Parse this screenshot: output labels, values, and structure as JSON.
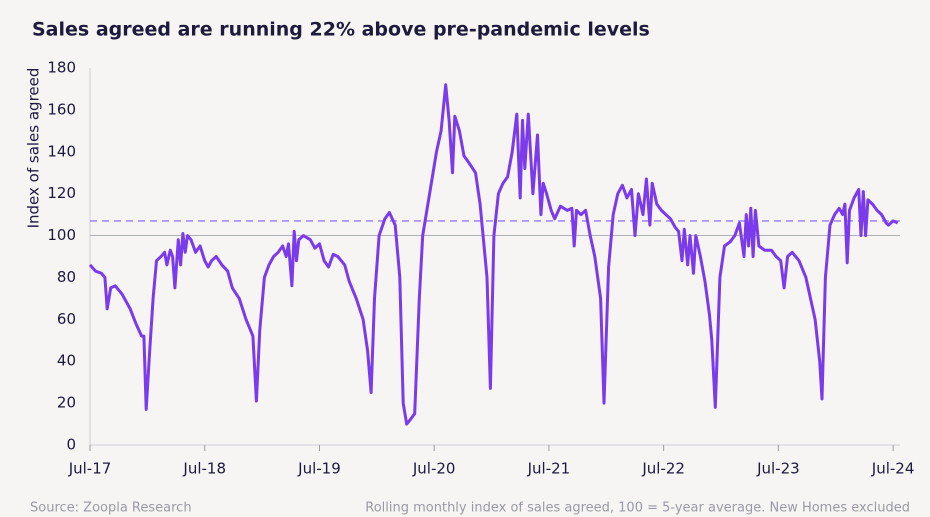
{
  "chart_data": {
    "type": "line",
    "title": "Sales agreed are running 22% above pre-pandemic levels",
    "y_label": "Index of sales agreed",
    "source": "Source: Zoopla Research",
    "note": "Rolling monthly index of sales agreed, 100 = 5-year average. New Homes excluded",
    "xlim": [
      2017.5,
      2024.56
    ],
    "xticks": [
      {
        "value": 2017.5,
        "label": "Jul-17"
      },
      {
        "value": 2018.5,
        "label": "Jul-18"
      },
      {
        "value": 2019.5,
        "label": "Jul-19"
      },
      {
        "value": 2020.5,
        "label": "Jul-20"
      },
      {
        "value": 2021.5,
        "label": "Jul-21"
      },
      {
        "value": 2022.5,
        "label": "Jul-22"
      },
      {
        "value": 2023.5,
        "label": "Jul-23"
      },
      {
        "value": 2024.5,
        "label": "Jul-24"
      }
    ],
    "ylim": [
      0,
      180
    ],
    "yticks": [
      0,
      20,
      40,
      60,
      80,
      100,
      120,
      140,
      160,
      180
    ],
    "hlines": [
      {
        "value": 100,
        "color": "#b0b0b8",
        "style": "solid"
      },
      {
        "value": 107,
        "color": "#a58cf5",
        "style": "dashed"
      }
    ],
    "x": [
      2017.5,
      2017.55,
      2017.6,
      2017.63,
      2017.65,
      2017.68,
      2017.72,
      2017.78,
      2017.85,
      2017.9,
      2017.95,
      2017.97,
      2017.99,
      2018.02,
      2018.05,
      2018.08,
      2018.12,
      2018.15,
      2018.17,
      2018.2,
      2018.22,
      2018.24,
      2018.27,
      2018.29,
      2018.31,
      2018.33,
      2018.35,
      2018.38,
      2018.42,
      2018.46,
      2018.5,
      2018.53,
      2018.56,
      2018.6,
      2018.65,
      2018.7,
      2018.74,
      2018.8,
      2018.86,
      2018.92,
      2018.95,
      2018.98,
      2019.02,
      2019.06,
      2019.1,
      2019.14,
      2019.18,
      2019.21,
      2019.23,
      2019.26,
      2019.28,
      2019.3,
      2019.32,
      2019.36,
      2019.42,
      2019.46,
      2019.5,
      2019.54,
      2019.58,
      2019.62,
      2019.66,
      2019.72,
      2019.76,
      2019.82,
      2019.88,
      2019.92,
      2019.95,
      2019.98,
      2020.02,
      2020.07,
      2020.11,
      2020.16,
      2020.2,
      2020.23,
      2020.26,
      2020.29,
      2020.33,
      2020.37,
      2020.4,
      2020.46,
      2020.52,
      2020.56,
      2020.6,
      2020.63,
      2020.66,
      2020.68,
      2020.72,
      2020.76,
      2020.8,
      2020.86,
      2020.9,
      2020.96,
      2020.99,
      2021.02,
      2021.06,
      2021.1,
      2021.14,
      2021.18,
      2021.22,
      2021.25,
      2021.27,
      2021.29,
      2021.32,
      2021.36,
      2021.4,
      2021.43,
      2021.45,
      2021.48,
      2021.52,
      2021.55,
      2021.6,
      2021.66,
      2021.7,
      2021.72,
      2021.74,
      2021.78,
      2021.82,
      2021.86,
      2021.9,
      2021.95,
      2021.98,
      2022.02,
      2022.06,
      2022.1,
      2022.14,
      2022.18,
      2022.22,
      2022.25,
      2022.28,
      2022.32,
      2022.35,
      2022.38,
      2022.4,
      2022.44,
      2022.48,
      2022.52,
      2022.56,
      2022.6,
      2022.63,
      2022.66,
      2022.68,
      2022.71,
      2022.73,
      2022.76,
      2022.78,
      2022.82,
      2022.86,
      2022.9,
      2022.92,
      2022.95,
      2022.99,
      2023.03,
      2023.08,
      2023.12,
      2023.16,
      2023.2,
      2023.22,
      2023.24,
      2023.26,
      2023.28,
      2023.3,
      2023.33,
      2023.38,
      2023.44,
      2023.48,
      2023.52,
      2023.55,
      2023.58,
      2023.62,
      2023.68,
      2023.74,
      2023.78,
      2023.82,
      2023.86,
      2023.88,
      2023.91,
      2023.95,
      2023.99,
      2024.03,
      2024.06,
      2024.08,
      2024.1,
      2024.12,
      2024.16,
      2024.2,
      2024.22,
      2024.24,
      2024.26,
      2024.28,
      2024.32,
      2024.36,
      2024.4,
      2024.44,
      2024.46,
      2024.5,
      2024.54
    ],
    "series": [
      {
        "color": "#7c3aed",
        "values": [
          86,
          83,
          82,
          80,
          65,
          75,
          76,
          72,
          65,
          58,
          52,
          52,
          17,
          45,
          70,
          88,
          90,
          92,
          86,
          93,
          90,
          75,
          98,
          86,
          101,
          92,
          100,
          98,
          92,
          95,
          88,
          85,
          88,
          90,
          86,
          83,
          75,
          70,
          60,
          52,
          21,
          55,
          80,
          86,
          90,
          92,
          95,
          90,
          96,
          76,
          102,
          88,
          98,
          100,
          98,
          94,
          96,
          88,
          85,
          91,
          90,
          86,
          78,
          70,
          60,
          45,
          25,
          70,
          100,
          108,
          111,
          105,
          80,
          20,
          10,
          12,
          15,
          70,
          100,
          120,
          140,
          150,
          172,
          155,
          130,
          157,
          150,
          138,
          135,
          130,
          115,
          80,
          27,
          100,
          120,
          125,
          128,
          140,
          158,
          118,
          155,
          132,
          158,
          120,
          148,
          110,
          125,
          120,
          112,
          108,
          114,
          112,
          113,
          95,
          112,
          110,
          112,
          100,
          90,
          70,
          20,
          85,
          110,
          120,
          124,
          118,
          122,
          100,
          120,
          110,
          127,
          105,
          125,
          115,
          112,
          110,
          108,
          104,
          102,
          88,
          103,
          86,
          100,
          82,
          100,
          90,
          78,
          62,
          50,
          18,
          80,
          95,
          97,
          100,
          106,
          90,
          110,
          95,
          113,
          90,
          112,
          95,
          93,
          93,
          90,
          88,
          75,
          90,
          92,
          88,
          80,
          70,
          60,
          40,
          22,
          80,
          105,
          110,
          113,
          110,
          115,
          87,
          112,
          118,
          122,
          100,
          121,
          100,
          117,
          115,
          112,
          110,
          106,
          105,
          107,
          106
        ]
      }
    ]
  }
}
